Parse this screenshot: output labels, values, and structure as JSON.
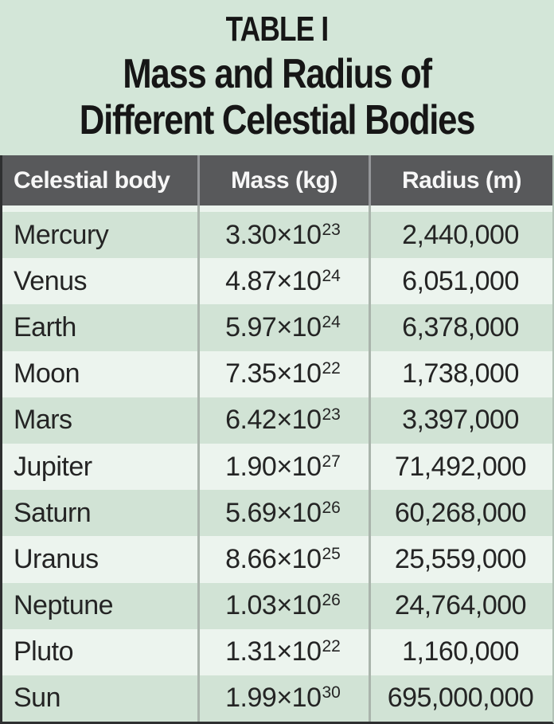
{
  "title": {
    "kicker": "TABLE I",
    "line1": "Mass and Radius of",
    "line2": "Different Celestial Bodies"
  },
  "colors": {
    "page_background": "#d3e6d8",
    "header_background": "#58595b",
    "header_text": "#f7f7f7",
    "row_dark_green": "#d1e3d5",
    "row_light_green": "#ecf4ee",
    "body_text": "#242424",
    "body_divider": "#aab4ac",
    "header_divider": "#95979a",
    "edge_border": "#2e2f30"
  },
  "chart_data": {
    "type": "table",
    "title": "TABLE I",
    "subtitle": "Mass and Radius of Different Celestial Bodies",
    "columns": [
      "Celestial body",
      "Mass (kg)",
      "Radius (m)"
    ],
    "rows": [
      {
        "name": "Mercury",
        "mass_base": "3.30×10",
        "mass_exp": "23",
        "radius": "2,440,000"
      },
      {
        "name": "Venus",
        "mass_base": "4.87×10",
        "mass_exp": "24",
        "radius": "6,051,000"
      },
      {
        "name": "Earth",
        "mass_base": "5.97×10",
        "mass_exp": "24",
        "radius": "6,378,000"
      },
      {
        "name": "Moon",
        "mass_base": "7.35×10",
        "mass_exp": "22",
        "radius": "1,738,000"
      },
      {
        "name": "Mars",
        "mass_base": "6.42×10",
        "mass_exp": "23",
        "radius": "3,397,000"
      },
      {
        "name": "Jupiter",
        "mass_base": "1.90×10",
        "mass_exp": "27",
        "radius": "71,492,000"
      },
      {
        "name": "Saturn",
        "mass_base": "5.69×10",
        "mass_exp": "26",
        "radius": "60,268,000"
      },
      {
        "name": "Uranus",
        "mass_base": "8.66×10",
        "mass_exp": "25",
        "radius": "25,559,000"
      },
      {
        "name": "Neptune",
        "mass_base": "1.03×10",
        "mass_exp": "26",
        "radius": "24,764,000"
      },
      {
        "name": "Pluto",
        "mass_base": "1.31×10",
        "mass_exp": "22",
        "radius": "1,160,000"
      },
      {
        "name": "Sun",
        "mass_base": "1.99×10",
        "mass_exp": "30",
        "radius": "695,000,000"
      }
    ]
  }
}
